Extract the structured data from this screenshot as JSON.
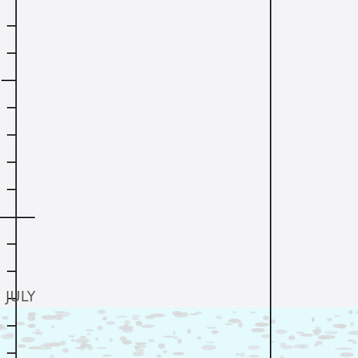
{
  "map": {
    "month_label": "JULY",
    "colors": {
      "background": "#f4f4f6",
      "ice_zone": "#e4fafc",
      "ice_patches": "#d8d8da",
      "gridline": "#1a1a1a",
      "tick": "#222222",
      "label": "#5a5a5a"
    }
  }
}
